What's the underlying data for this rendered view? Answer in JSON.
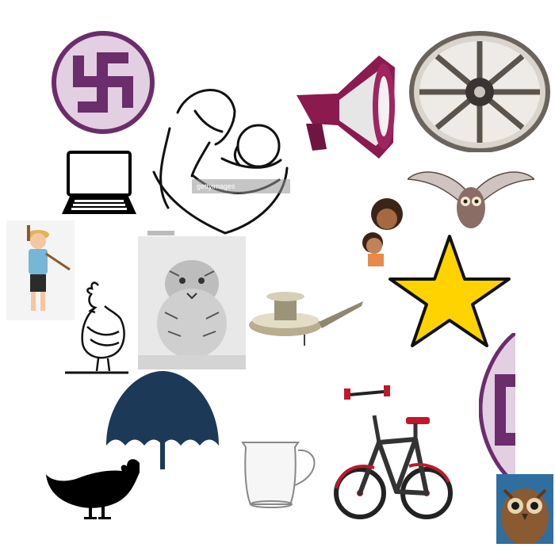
{
  "canvas": {
    "background": "#ffffff"
  },
  "watermark_text": "gettyimages",
  "images": [
    {
      "name": "swastika-emblem-icon",
      "color": "#6b2d6b"
    },
    {
      "name": "mother-holding-baby-icon"
    },
    {
      "name": "megaphone-icon",
      "color": "#8b1a4f"
    },
    {
      "name": "wagon-wheel-icon"
    },
    {
      "name": "laptop-icon"
    },
    {
      "name": "flying-owl-icon"
    },
    {
      "name": "child-icon"
    },
    {
      "name": "farmer-boy-icon"
    },
    {
      "name": "star-icon",
      "color": "#ffd300"
    },
    {
      "name": "rooster-icon"
    },
    {
      "name": "tiger-icon"
    },
    {
      "name": "oil-lamp-icon"
    },
    {
      "name": "swastika-emblem-partial-icon",
      "color": "#6b2d6b"
    },
    {
      "name": "umbrella-icon",
      "color": "#1c3a57"
    },
    {
      "name": "hen-silhouette-icon"
    },
    {
      "name": "glass-jug-icon"
    },
    {
      "name": "bicycle-icon",
      "color": "#c0182a"
    },
    {
      "name": "owl-photo-icon"
    }
  ]
}
